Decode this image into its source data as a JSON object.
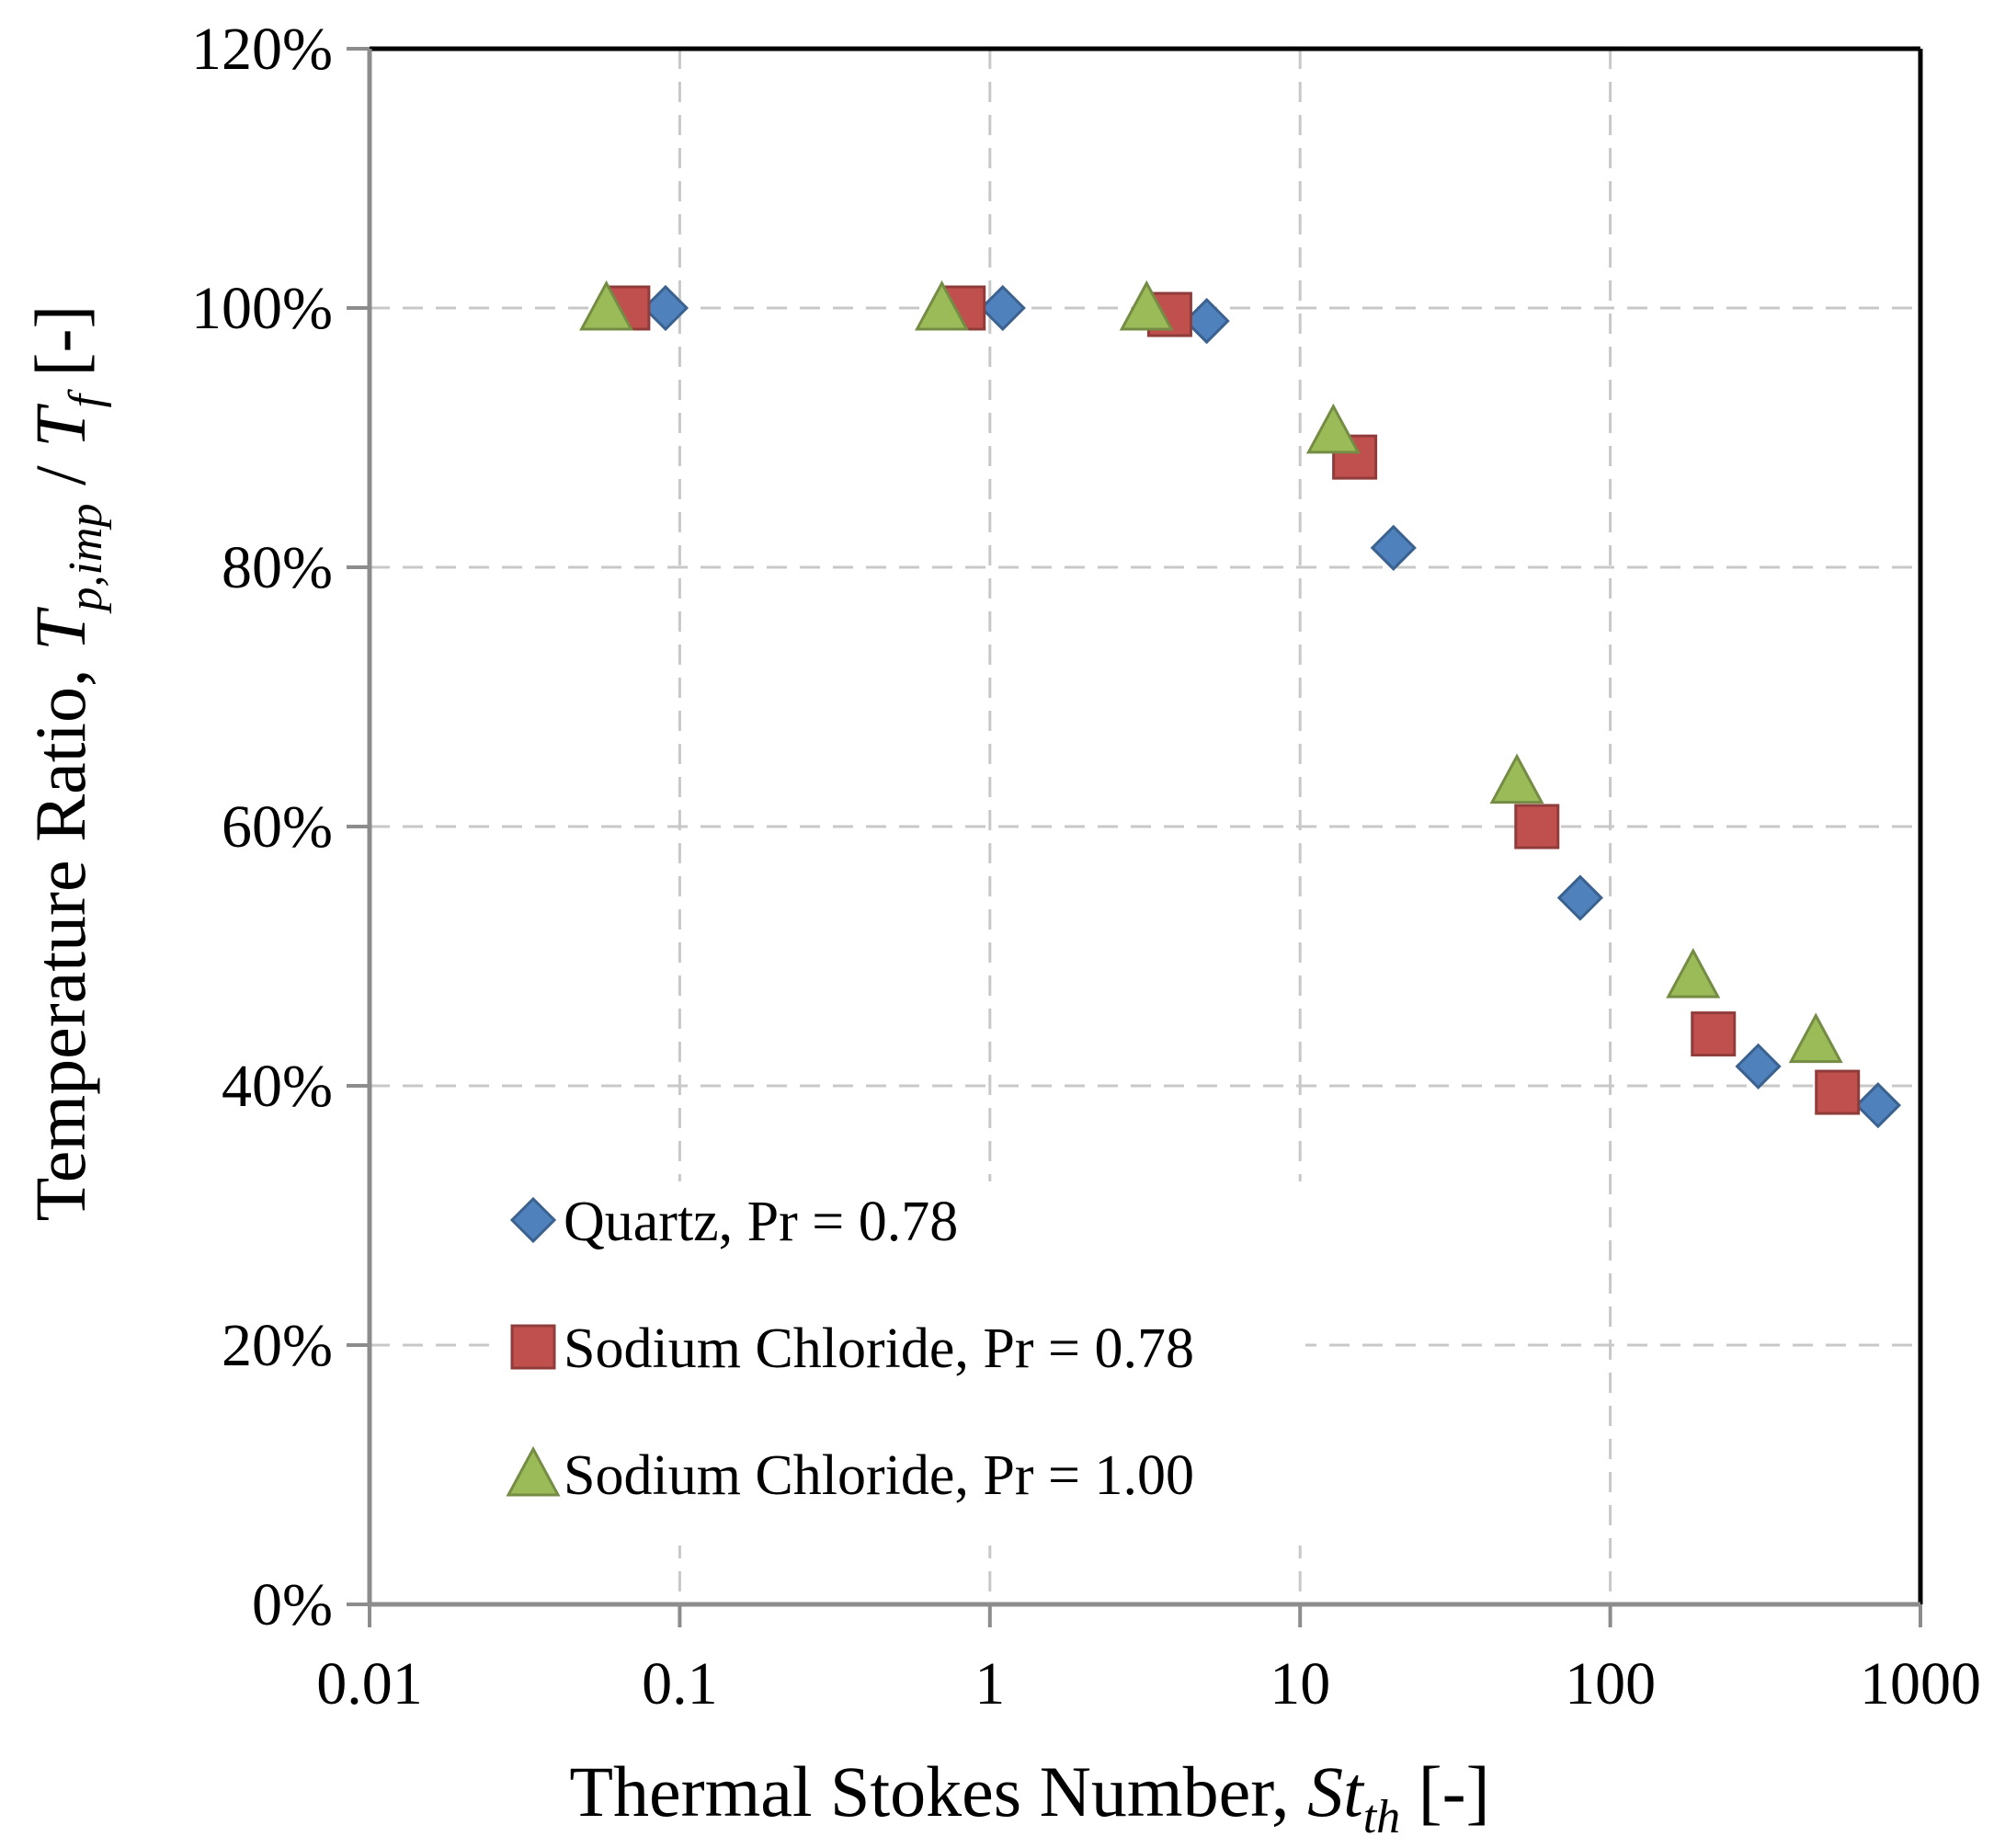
{
  "chart_data": {
    "type": "scatter",
    "title": "",
    "xlabel": "Thermal Stokes Number, St_th [-]",
    "xlabel_parts": {
      "main": "Thermal Stokes Number, ",
      "var": "St",
      "sub": "th",
      "unit": " [-]"
    },
    "ylabel": "Temperature Ratio, T_p,imp / T_f [-]",
    "ylabel_parts": {
      "main": "Temperature Ratio, ",
      "var1": "T",
      "sub1": "p,imp",
      "sep": " / ",
      "var2": "T",
      "sub2": "f",
      "unit": " [-]"
    },
    "x_scale": "log",
    "xlim": [
      0.01,
      1000
    ],
    "ylim": [
      0,
      1.2
    ],
    "x_ticks": [
      {
        "value": 0.01,
        "label": "0.01"
      },
      {
        "value": 0.1,
        "label": "0.1"
      },
      {
        "value": 1,
        "label": "1"
      },
      {
        "value": 10,
        "label": "10"
      },
      {
        "value": 100,
        "label": "100"
      },
      {
        "value": 1000,
        "label": "1000"
      }
    ],
    "y_ticks": [
      {
        "value": 0,
        "label": "0%"
      },
      {
        "value": 0.2,
        "label": "20%"
      },
      {
        "value": 0.4,
        "label": "40%"
      },
      {
        "value": 0.6,
        "label": "60%"
      },
      {
        "value": 0.8,
        "label": "80%"
      },
      {
        "value": 1.0,
        "label": "100%"
      },
      {
        "value": 1.2,
        "label": "120%"
      }
    ],
    "grid": true,
    "legend_position": "bottom-left",
    "series": [
      {
        "name": "Quartz, Pr = 0.78",
        "marker": "diamond",
        "color": "#4f81bd",
        "x": [
          0.09,
          1.1,
          5.0,
          20,
          80,
          300,
          730
        ],
        "y": [
          1.0,
          1.0,
          0.99,
          0.815,
          0.545,
          0.415,
          0.385
        ]
      },
      {
        "name": "Sodium Chloride, Pr = 0.78",
        "marker": "square",
        "color": "#c0504d",
        "x": [
          0.068,
          0.82,
          3.8,
          15,
          58,
          215,
          540
        ],
        "y": [
          1.0,
          1.0,
          0.995,
          0.885,
          0.6,
          0.44,
          0.395
        ]
      },
      {
        "name": "Sodium Chloride, Pr = 1.00",
        "marker": "triangle",
        "color": "#9bbb59",
        "x": [
          0.058,
          0.7,
          3.2,
          12.8,
          50,
          185,
          460
        ],
        "y": [
          1.0,
          1.0,
          1.0,
          0.905,
          0.635,
          0.485,
          0.435
        ]
      }
    ]
  }
}
